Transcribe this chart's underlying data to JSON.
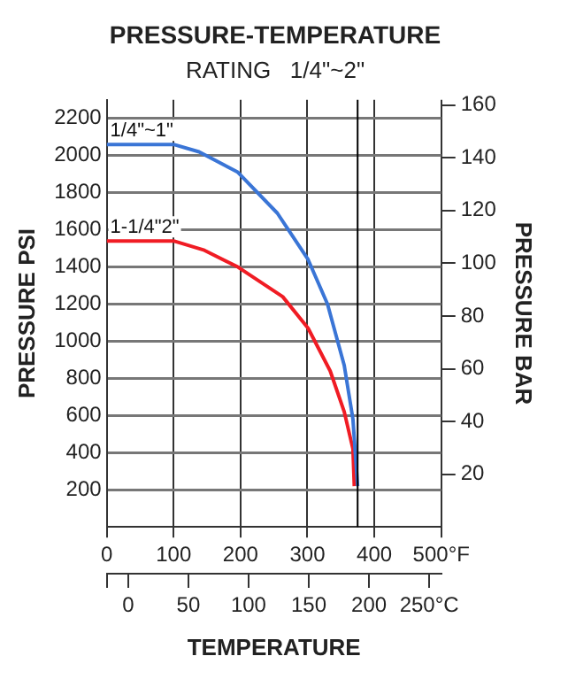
{
  "chart_data": {
    "type": "line",
    "title": "PRESSURE-TEMPERATURE",
    "subtitle": "RATING   1/4\"~2\"",
    "xlabel": "TEMPERATURE",
    "ylabel": "PRESSURE PSI",
    "y2label": "PRESSURE BAR",
    "series": [
      {
        "name": "1/4\"~1\"",
        "color": "#3a75d6",
        "x": [
          0,
          100,
          138,
          196,
          255,
          301,
          330,
          355,
          368,
          375
        ],
        "values": [
          2060,
          2060,
          2020,
          1910,
          1690,
          1440,
          1200,
          870,
          580,
          220
        ]
      },
      {
        "name": "1-1/4\"2\"",
        "color": "#f01c24",
        "x": [
          0,
          100,
          146,
          196,
          263,
          301,
          334,
          355,
          368,
          370
        ],
        "values": [
          1540,
          1540,
          1490,
          1400,
          1240,
          1070,
          840,
          620,
          420,
          220
        ]
      }
    ],
    "xlim": [
      0,
      500
    ],
    "xticks": [
      0,
      100,
      200,
      300,
      400,
      {
        "value": 500,
        "label": "500°F"
      }
    ],
    "x2lim": [
      -17.8,
      260
    ],
    "x2ticks": [
      {
        "value": -17.8,
        "label": null
      },
      0,
      50,
      100,
      150,
      200,
      {
        "value": 250,
        "label": "250°C"
      }
    ],
    "ylim": [
      0,
      2300
    ],
    "yticks": [
      200,
      400,
      600,
      800,
      1000,
      1200,
      1400,
      1600,
      1800,
      2000,
      2200
    ],
    "y2lim": [
      0,
      162
    ],
    "y2ticks": [
      20,
      40,
      60,
      80,
      100,
      120,
      140,
      160
    ],
    "ref_lines": [
      {
        "axis": "x",
        "value": 375,
        "color": "#000000"
      }
    ],
    "grid": true,
    "legend": false,
    "marker": "none",
    "line_style": "solid"
  }
}
